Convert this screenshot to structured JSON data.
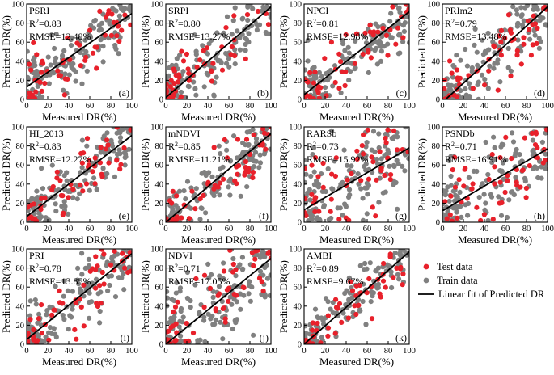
{
  "figure": {
    "xlabel": "Measured DR(%)",
    "ylabel": "Predicted DR(%)",
    "colors": {
      "test": "#e8212b",
      "train": "#808080",
      "fit": "#000000"
    }
  },
  "legend": {
    "test": "Test data",
    "train": "Train data",
    "fit": "Linear fit of Predicted DR"
  },
  "chart_data": [
    {
      "type": "scatter",
      "name": "PSRI",
      "letter": "(a)",
      "r2": "0.83",
      "rmse": "RMSE=12.48%",
      "xlim": [
        0,
        100
      ],
      "ylim": [
        0,
        100
      ],
      "xticks": [
        0,
        20,
        40,
        60,
        80,
        100
      ],
      "yticks": [
        0,
        20,
        40,
        60,
        80,
        100
      ],
      "fit": {
        "slope": 0.77,
        "intercept": 13
      },
      "point_count": {
        "test": 55,
        "train": 150
      },
      "xlabel": "Measured DR(%)",
      "ylabel": "Predicted DR(%)"
    },
    {
      "type": "scatter",
      "name": "SRPI",
      "letter": "(b)",
      "r2": "0.80",
      "rmse": "RMSE=13.27%",
      "xlim": [
        0,
        100
      ],
      "ylim": [
        0,
        100
      ],
      "xticks": [
        0,
        20,
        40,
        60,
        80,
        100
      ],
      "yticks": [
        0,
        20,
        40,
        60,
        80,
        100
      ],
      "fit": {
        "slope": 0.95,
        "intercept": 2
      },
      "point_count": {
        "test": 55,
        "train": 150
      },
      "xlabel": "Measured DR(%)",
      "ylabel": "Predicted DR(%)"
    },
    {
      "type": "scatter",
      "name": "NPCI",
      "letter": "(c)",
      "r2": "0.81",
      "rmse": "RMSE=12.98%",
      "xlim": [
        0,
        100
      ],
      "ylim": [
        0,
        100
      ],
      "xticks": [
        0,
        20,
        40,
        60,
        80,
        100
      ],
      "yticks": [
        0,
        20,
        40,
        60,
        80,
        100
      ],
      "fit": {
        "slope": 0.87,
        "intercept": 5
      },
      "point_count": {
        "test": 55,
        "train": 150
      },
      "xlabel": "Measured DR(%)",
      "ylabel": "Predicted DR(%)"
    },
    {
      "type": "scatter",
      "name": "PRIm2",
      "letter": "(d)",
      "r2": "0.79",
      "rmse": "RMSE=13.48%",
      "xlim": [
        0,
        100
      ],
      "ylim": [
        0,
        100
      ],
      "xticks": [
        0,
        20,
        40,
        60,
        80,
        100
      ],
      "yticks": [
        0,
        20,
        40,
        60,
        80,
        100
      ],
      "fit": {
        "slope": 1.0,
        "intercept": -3
      },
      "point_count": {
        "test": 55,
        "train": 150
      },
      "xlabel": "Measured DR(%)",
      "ylabel": "Predicted DR(%)"
    },
    {
      "type": "scatter",
      "name": "HI_2013",
      "letter": "(e)",
      "r2": "0.83",
      "rmse": "RMSE=12.27%",
      "xlim": [
        0,
        100
      ],
      "ylim": [
        0,
        100
      ],
      "xticks": [
        0,
        20,
        40,
        60,
        80,
        100
      ],
      "yticks": [
        0,
        20,
        40,
        60,
        80,
        100
      ],
      "fit": {
        "slope": 0.85,
        "intercept": 6
      },
      "point_count": {
        "test": 55,
        "train": 150
      },
      "xlabel": "Measured DR(%)",
      "ylabel": "Predicted DR(%)"
    },
    {
      "type": "scatter",
      "name": "mNDVI",
      "letter": "(f)",
      "r2": "0.85",
      "rmse": "RMSE=11.21%",
      "xlim": [
        0,
        100
      ],
      "ylim": [
        0,
        100
      ],
      "xticks": [
        0,
        20,
        40,
        60,
        80,
        100
      ],
      "yticks": [
        0,
        20,
        40,
        60,
        80,
        100
      ],
      "fit": {
        "slope": 0.93,
        "intercept": 0
      },
      "point_count": {
        "test": 55,
        "train": 150
      },
      "xlabel": "Measured DR(%)",
      "ylabel": "Predicted DR(%)"
    },
    {
      "type": "scatter",
      "name": "RARSb",
      "letter": "(g)",
      "r2": "0.73",
      "rmse": "RMSE=15.92%",
      "xlim": [
        0,
        100
      ],
      "ylim": [
        0,
        100
      ],
      "xticks": [
        0,
        20,
        40,
        60,
        80,
        100
      ],
      "yticks": [
        0,
        20,
        40,
        60,
        80,
        100
      ],
      "fit": {
        "slope": 0.65,
        "intercept": 13
      },
      "point_count": {
        "test": 55,
        "train": 150
      },
      "xlabel": "Measured DR(%)",
      "ylabel": "Predicted DR(%)"
    },
    {
      "type": "scatter",
      "name": "PSNDb",
      "letter": "(h)",
      "r2": "0.71",
      "rmse": "RMSE=16.91%",
      "xlim": [
        0,
        100
      ],
      "ylim": [
        0,
        100
      ],
      "xticks": [
        0,
        20,
        40,
        60,
        80,
        100
      ],
      "yticks": [
        0,
        20,
        40,
        60,
        80,
        100
      ],
      "fit": {
        "slope": 0.65,
        "intercept": 12
      },
      "point_count": {
        "test": 55,
        "train": 150
      },
      "xlabel": "Measured DR(%)",
      "ylabel": "Predicted DR(%)"
    },
    {
      "type": "scatter",
      "name": "PRI",
      "letter": "(i)",
      "r2": "0.78",
      "rmse": "RMSE=13.85%",
      "xlim": [
        0,
        100
      ],
      "ylim": [
        0,
        100
      ],
      "xticks": [
        0,
        20,
        40,
        60,
        80,
        100
      ],
      "yticks": [
        0,
        20,
        40,
        60,
        80,
        100
      ],
      "fit": {
        "slope": 0.9,
        "intercept": 5
      },
      "point_count": {
        "test": 55,
        "train": 150
      },
      "xlabel": "Measured DR(%)",
      "ylabel": "Predicted DR(%)"
    },
    {
      "type": "scatter",
      "name": "NDVI",
      "letter": "(j)",
      "r2": "0.71",
      "rmse": "RMSE=17.05%",
      "xlim": [
        0,
        100
      ],
      "ylim": [
        0,
        100
      ],
      "xticks": [
        0,
        20,
        40,
        60,
        80,
        100
      ],
      "yticks": [
        0,
        20,
        40,
        60,
        80,
        100
      ],
      "fit": {
        "slope": 0.9,
        "intercept": 0
      },
      "point_count": {
        "test": 55,
        "train": 150
      },
      "xlabel": "Measured DR(%)",
      "ylabel": "Predicted DR(%)"
    },
    {
      "type": "scatter",
      "name": "AMBI",
      "letter": "(k)",
      "r2": "0.89",
      "rmse": "RMSE=9.67%",
      "xlim": [
        0,
        100
      ],
      "ylim": [
        0,
        100
      ],
      "xticks": [
        0,
        20,
        40,
        60,
        80,
        100
      ],
      "yticks": [
        0,
        20,
        40,
        60,
        80,
        100
      ],
      "fit": {
        "slope": 0.97,
        "intercept": 0
      },
      "point_count": {
        "test": 55,
        "train": 150
      },
      "xlabel": "Measured DR(%)",
      "ylabel": "Predicted DR(%)"
    }
  ]
}
